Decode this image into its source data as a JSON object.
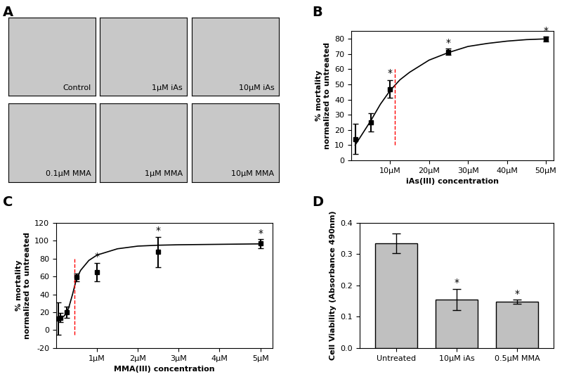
{
  "images": {
    "panel": "A",
    "labels": [
      "Control",
      "1μM iAs",
      "10μM iAs",
      "0.1μM MMA",
      "1μM MMA",
      "10μM MMA"
    ]
  },
  "chart_data": [
    {
      "panel": "B",
      "type": "scatter",
      "xlabel": "iAs(III) concentration",
      "ylabel": "% mortality\nnormalized to untreated",
      "xlim": [
        0,
        52
      ],
      "ylim": [
        0,
        85
      ],
      "xticks": [
        {
          "value": 10,
          "label": "10μM"
        },
        {
          "value": 20,
          "label": "20μM"
        },
        {
          "value": 30,
          "label": "30μM"
        },
        {
          "value": 40,
          "label": "40μM"
        },
        {
          "value": 50,
          "label": "50μM"
        }
      ],
      "yticks": [
        0,
        10,
        20,
        30,
        40,
        50,
        60,
        70,
        80
      ],
      "series": [
        {
          "type": "scatter",
          "color": "#000000",
          "marker": "square",
          "x": [
            1,
            5,
            10,
            25,
            50
          ],
          "values": [
            14,
            25,
            47,
            71.5,
            80
          ],
          "error": [
            10,
            6,
            6,
            2,
            1.5
          ]
        },
        {
          "type": "line",
          "color": "#000000",
          "line_style": "solid",
          "x": [
            1,
            2.5,
            5,
            7.5,
            10,
            12.5,
            15,
            20,
            25,
            30,
            35,
            40,
            45,
            50
          ],
          "values": [
            10,
            16,
            26,
            37,
            46,
            53,
            58,
            66,
            71,
            75,
            77,
            78.5,
            79.5,
            80
          ]
        }
      ],
      "reference_line": {
        "x": 11.2,
        "ymin": 10,
        "ymax": 60,
        "color": "#ff0000",
        "line_style": "dashed"
      },
      "annotations": [
        {
          "x": 10,
          "y": 54,
          "text": "*"
        },
        {
          "x": 25,
          "y": 74,
          "text": "*"
        },
        {
          "x": 50,
          "y": 82,
          "text": "*"
        }
      ]
    },
    {
      "panel": "C",
      "type": "scatter",
      "xlabel": "MMA(III) concentration",
      "ylabel": "% mortality\nnormalized to untreated",
      "xlim": [
        0,
        5.3
      ],
      "ylim": [
        -20,
        120
      ],
      "xticks": [
        {
          "value": 1,
          "label": "1μM"
        },
        {
          "value": 2,
          "label": "2μM"
        },
        {
          "value": 3,
          "label": "3μM"
        },
        {
          "value": 4,
          "label": "4μM"
        },
        {
          "value": 5,
          "label": "5μM"
        }
      ],
      "yticks": [
        -20,
        0,
        20,
        40,
        60,
        80,
        100,
        120
      ],
      "series": [
        {
          "type": "scatter",
          "color": "#000000",
          "marker": "square",
          "x": [
            0.05,
            0.1,
            0.25,
            0.5,
            1,
            2.5,
            5
          ],
          "values": [
            13,
            14,
            20,
            59,
            65,
            87.5,
            97
          ],
          "error": [
            18,
            5,
            6,
            4,
            10,
            17,
            5
          ]
        },
        {
          "type": "line",
          "color": "#000000",
          "line_style": "solid",
          "x": [
            0.05,
            0.1,
            0.2,
            0.3,
            0.4,
            0.5,
            0.6,
            0.8,
            1.0,
            1.5,
            2,
            2.5,
            3,
            4,
            5
          ],
          "values": [
            13,
            13.5,
            16,
            24,
            40,
            58,
            67,
            78,
            84,
            91,
            94,
            95,
            95.5,
            96,
            96.5
          ]
        }
      ],
      "reference_line": {
        "x": 0.45,
        "ymin": -5,
        "ymax": 80,
        "color": "#ff0000",
        "line_style": "dashed"
      },
      "annotations": [
        {
          "x": 1,
          "y": 77,
          "text": "*"
        },
        {
          "x": 2.5,
          "y": 106,
          "text": "*"
        },
        {
          "x": 5,
          "y": 103,
          "text": "*"
        }
      ]
    },
    {
      "panel": "D",
      "type": "bar",
      "ylabel": "Cell Viability (Absorbance 490nm)",
      "categories": [
        "Untreated",
        "10μM iAs",
        "0.5μM MMA"
      ],
      "values": [
        0.335,
        0.155,
        0.148
      ],
      "error": [
        0.032,
        0.033,
        0.006
      ],
      "color": "#c0c0c0",
      "ylim": [
        0,
        0.4
      ],
      "yticks": [
        0.0,
        0.1,
        0.2,
        0.3,
        0.4
      ],
      "annotations": [
        {
          "category": "10μM iAs",
          "y": 0.192,
          "text": "*"
        },
        {
          "category": "0.5μM MMA",
          "y": 0.158,
          "text": "*"
        }
      ]
    }
  ]
}
